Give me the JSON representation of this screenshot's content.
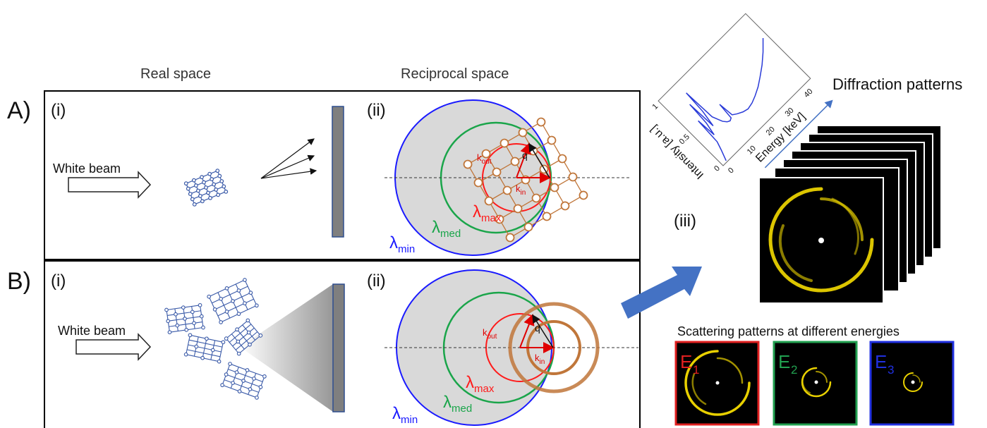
{
  "headers": {
    "real_space": "Real space",
    "reciprocal_space": "Reciprocal space",
    "diffraction_patterns": "Diffraction patterns",
    "scattering_patterns": "Scattering patterns at different energies"
  },
  "panel_a": {
    "letter": "A)",
    "i": "(i)",
    "ii": "(ii)",
    "beam": "White beam"
  },
  "panel_b": {
    "letter": "B)",
    "i": "(i)",
    "ii": "(ii)",
    "beam": "White beam"
  },
  "iii_label": "(iii)",
  "lambda_symbol": "λ",
  "sub": {
    "min": "min",
    "med": "med",
    "max": "max"
  },
  "k_out": "k",
  "k_in": "k",
  "k_out_sub": "out",
  "k_in_sub": "in",
  "q": "q",
  "spectrum": {
    "xlabel": "Energy [keV]",
    "ylabel": "Intensity [a.u.]",
    "xticks": [
      "0",
      "10",
      "20",
      "30",
      "40"
    ],
    "yticks": [
      "0",
      "0.5",
      "1"
    ]
  },
  "energies": [
    {
      "E": "E",
      "sub": "1",
      "color": "#e02020"
    },
    {
      "E": "E",
      "sub": "2",
      "color": "#22a050"
    },
    {
      "E": "E",
      "sub": "3",
      "color": "#2030e0"
    }
  ],
  "colors": {
    "min": "#1a1aff",
    "med": "#1aa54a",
    "max": "#ff1a1a",
    "crystal": "#c0763a",
    "lattice": "#3a5aa8",
    "arrow": "#4472c4",
    "ring": "#e8d000"
  }
}
